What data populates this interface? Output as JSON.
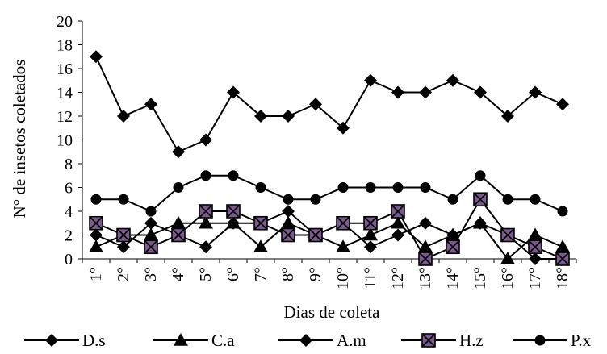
{
  "chart_data": {
    "type": "line",
    "title": "",
    "xlabel": "Dias de coleta",
    "ylabel": "N° de insetos coletados",
    "ylim": [
      0,
      20
    ],
    "yticks": [
      0,
      2,
      4,
      6,
      8,
      10,
      12,
      14,
      16,
      18,
      20
    ],
    "categories": [
      "1°",
      "2°",
      "3°",
      "4°",
      "5°",
      "6°",
      "7°",
      "8°",
      "9°",
      "10°",
      "11°",
      "12°",
      "13°",
      "14°",
      "15°",
      "16°",
      "17°",
      "18°"
    ],
    "grid": false,
    "legend_position": "bottom",
    "series": [
      {
        "name": "D.s",
        "marker": "diamond",
        "color": "#000000",
        "values": [
          17,
          12,
          13,
          9,
          10,
          14,
          12,
          12,
          13,
          11,
          15,
          14,
          14,
          15,
          14,
          12,
          14,
          13
        ]
      },
      {
        "name": "C.a",
        "marker": "triangle",
        "color": "#000000",
        "values": [
          1,
          2,
          2,
          3,
          3,
          3,
          1,
          3,
          2,
          1,
          2,
          3,
          1,
          2,
          3,
          0,
          2,
          1
        ]
      },
      {
        "name": "A.m",
        "marker": "diamond",
        "color": "#000000",
        "values": [
          2,
          1,
          3,
          2,
          1,
          3,
          3,
          4,
          2,
          3,
          1,
          2,
          3,
          2,
          3,
          2,
          0,
          0
        ]
      },
      {
        "name": "H.z",
        "marker": "square-x",
        "color": "#000000",
        "marker_fill": "#7a5a8c",
        "values": [
          3,
          2,
          1,
          2,
          4,
          4,
          3,
          2,
          2,
          3,
          3,
          4,
          0,
          1,
          5,
          2,
          1,
          0
        ]
      },
      {
        "name": "P.x",
        "marker": "circle",
        "color": "#000000",
        "values": [
          5,
          5,
          4,
          6,
          7,
          7,
          6,
          5,
          5,
          6,
          6,
          6,
          6,
          5,
          7,
          5,
          5,
          4
        ]
      }
    ]
  }
}
